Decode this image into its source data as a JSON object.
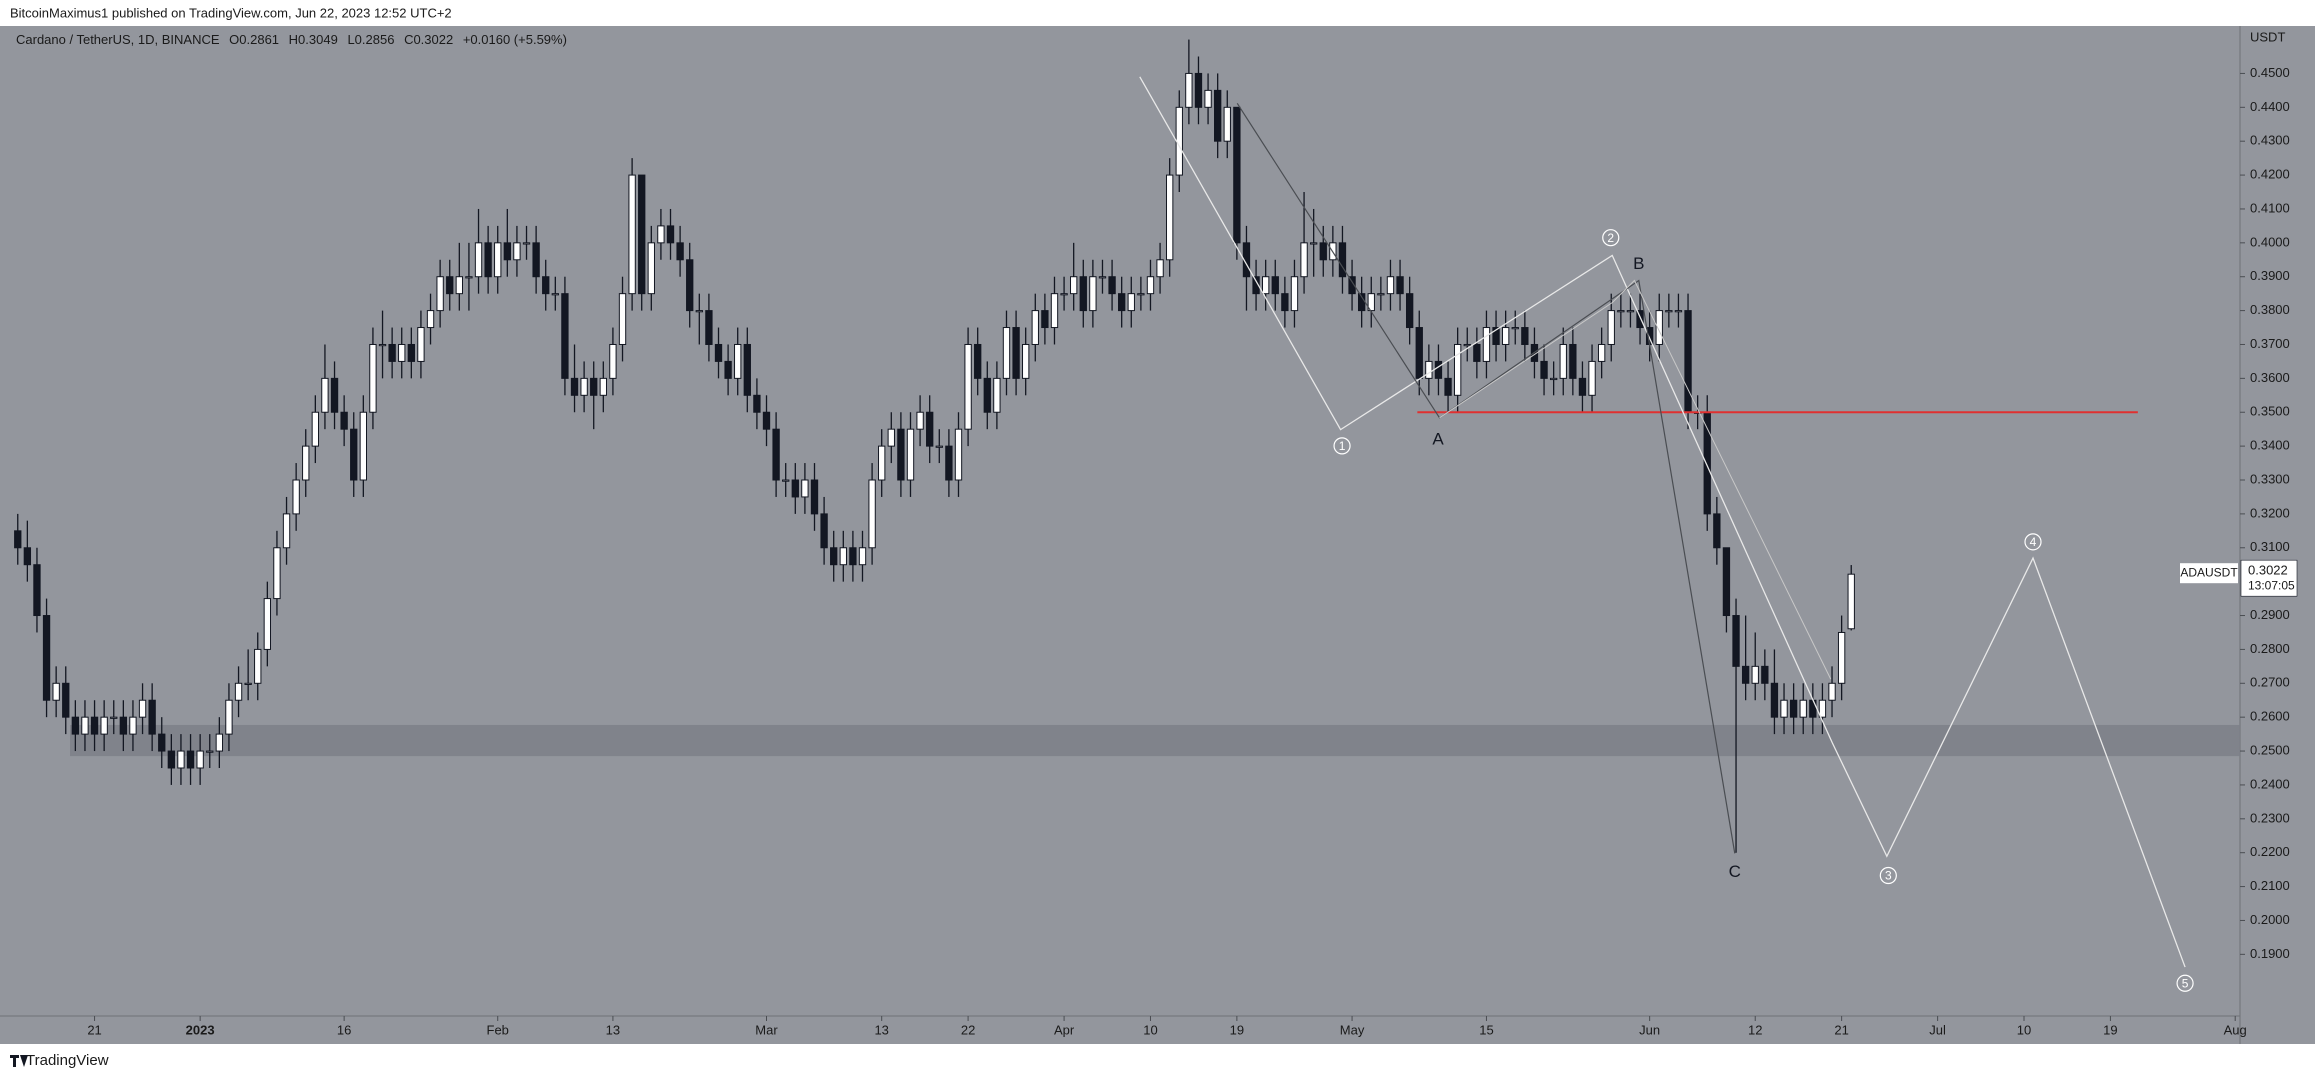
{
  "header": {
    "publisher": "BitcoinMaximus1 published on TradingView.com, Jun 22, 2023 12:52 UTC+2"
  },
  "footer": {
    "brand": "TradingView"
  },
  "chart_data": {
    "type": "candlestick",
    "title": "Cardano / TetherUS, 1D, BINANCE",
    "ohlc_labels": [
      "O",
      "H",
      "L",
      "C"
    ],
    "change": "+0.0160 (+5.59%)",
    "currency": "USDT",
    "symbol": "ADAUSDT",
    "countdown": "13:07:05",
    "up_color": "#ffffff",
    "down_color": "#131722",
    "open": [
      0.315,
      0.31,
      0.305,
      0.29,
      0.265,
      0.27,
      0.26,
      0.255,
      0.26,
      0.255,
      0.26,
      0.26,
      0.255,
      0.26,
      0.265,
      0.255,
      0.25,
      0.245,
      0.25,
      0.245,
      0.25,
      0.25,
      0.255,
      0.265,
      0.27,
      0.27,
      0.28,
      0.295,
      0.31,
      0.32,
      0.33,
      0.34,
      0.35,
      0.36,
      0.35,
      0.345,
      0.33,
      0.35,
      0.37,
      0.37,
      0.365,
      0.37,
      0.365,
      0.375,
      0.38,
      0.39,
      0.385,
      0.39,
      0.39,
      0.4,
      0.39,
      0.4,
      0.395,
      0.4,
      0.4,
      0.39,
      0.385,
      0.385,
      0.36,
      0.355,
      0.36,
      0.355,
      0.36,
      0.37,
      0.385,
      0.42,
      0.385,
      0.4,
      0.405,
      0.4,
      0.395,
      0.38,
      0.38,
      0.37,
      0.365,
      0.36,
      0.37,
      0.355,
      0.35,
      0.345,
      0.33,
      0.33,
      0.325,
      0.33,
      0.32,
      0.31,
      0.305,
      0.31,
      0.305,
      0.31,
      0.33,
      0.34,
      0.345,
      0.33,
      0.345,
      0.35,
      0.34,
      0.34,
      0.33,
      0.345,
      0.37,
      0.36,
      0.35,
      0.36,
      0.375,
      0.36,
      0.37,
      0.38,
      0.375,
      0.385,
      0.385,
      0.39,
      0.38,
      0.39,
      0.39,
      0.385,
      0.38,
      0.385,
      0.385,
      0.39,
      0.395,
      0.42,
      0.44,
      0.45,
      0.44,
      0.445,
      0.43,
      0.44,
      0.4,
      0.39,
      0.385,
      0.39,
      0.385,
      0.38,
      0.39,
      0.4,
      0.4,
      0.395,
      0.4,
      0.39,
      0.385,
      0.38,
      0.385,
      0.385,
      0.39,
      0.385,
      0.375,
      0.36,
      0.365,
      0.36,
      0.355,
      0.37,
      0.37,
      0.365,
      0.375,
      0.37,
      0.375,
      0.375,
      0.37,
      0.365,
      0.36,
      0.36,
      0.37,
      0.36,
      0.355,
      0.365,
      0.37,
      0.38,
      0.38,
      0.38,
      0.375,
      0.37,
      0.38,
      0.38,
      0.38,
      0.35,
      0.35,
      0.32,
      0.31,
      0.29,
      0.275,
      0.27,
      0.275,
      0.27,
      0.26,
      0.265,
      0.26,
      0.265,
      0.26,
      0.265,
      0.27,
      0.2861
    ],
    "high": [
      0.32,
      0.318,
      0.31,
      0.295,
      0.275,
      0.275,
      0.265,
      0.265,
      0.265,
      0.265,
      0.265,
      0.265,
      0.265,
      0.27,
      0.27,
      0.26,
      0.255,
      0.255,
      0.255,
      0.255,
      0.255,
      0.26,
      0.27,
      0.275,
      0.28,
      0.285,
      0.3,
      0.315,
      0.325,
      0.335,
      0.345,
      0.355,
      0.37,
      0.365,
      0.355,
      0.35,
      0.355,
      0.375,
      0.38,
      0.375,
      0.375,
      0.375,
      0.38,
      0.385,
      0.395,
      0.395,
      0.4,
      0.4,
      0.41,
      0.405,
      0.405,
      0.41,
      0.405,
      0.405,
      0.405,
      0.395,
      0.39,
      0.39,
      0.37,
      0.365,
      0.365,
      0.365,
      0.375,
      0.39,
      0.425,
      0.42,
      0.405,
      0.41,
      0.41,
      0.405,
      0.4,
      0.385,
      0.385,
      0.375,
      0.37,
      0.375,
      0.375,
      0.36,
      0.355,
      0.35,
      0.335,
      0.335,
      0.335,
      0.335,
      0.325,
      0.315,
      0.315,
      0.315,
      0.315,
      0.335,
      0.345,
      0.35,
      0.35,
      0.35,
      0.355,
      0.355,
      0.345,
      0.345,
      0.35,
      0.375,
      0.375,
      0.365,
      0.365,
      0.38,
      0.38,
      0.375,
      0.385,
      0.385,
      0.39,
      0.39,
      0.4,
      0.395,
      0.395,
      0.395,
      0.395,
      0.39,
      0.39,
      0.39,
      0.395,
      0.4,
      0.425,
      0.445,
      0.46,
      0.455,
      0.45,
      0.45,
      0.445,
      0.44,
      0.405,
      0.395,
      0.395,
      0.395,
      0.39,
      0.395,
      0.415,
      0.41,
      0.405,
      0.405,
      0.405,
      0.395,
      0.39,
      0.39,
      0.39,
      0.395,
      0.395,
      0.39,
      0.38,
      0.37,
      0.37,
      0.365,
      0.375,
      0.375,
      0.375,
      0.38,
      0.38,
      0.38,
      0.38,
      0.38,
      0.375,
      0.37,
      0.365,
      0.375,
      0.375,
      0.365,
      0.37,
      0.375,
      0.385,
      0.385,
      0.385,
      0.385,
      0.38,
      0.385,
      0.385,
      0.385,
      0.385,
      0.355,
      0.355,
      0.325,
      0.31,
      0.295,
      0.29,
      0.285,
      0.28,
      0.28,
      0.27,
      0.27,
      0.27,
      0.27,
      0.27,
      0.275,
      0.29,
      0.3049
    ],
    "low": [
      0.305,
      0.3,
      0.285,
      0.26,
      0.26,
      0.255,
      0.25,
      0.25,
      0.25,
      0.25,
      0.255,
      0.25,
      0.25,
      0.255,
      0.25,
      0.245,
      0.24,
      0.24,
      0.24,
      0.24,
      0.245,
      0.245,
      0.25,
      0.26,
      0.265,
      0.265,
      0.275,
      0.29,
      0.305,
      0.315,
      0.325,
      0.335,
      0.345,
      0.345,
      0.34,
      0.325,
      0.325,
      0.345,
      0.36,
      0.36,
      0.36,
      0.36,
      0.36,
      0.37,
      0.375,
      0.38,
      0.38,
      0.38,
      0.385,
      0.385,
      0.385,
      0.39,
      0.39,
      0.395,
      0.385,
      0.38,
      0.38,
      0.355,
      0.35,
      0.35,
      0.345,
      0.35,
      0.355,
      0.365,
      0.38,
      0.38,
      0.38,
      0.395,
      0.395,
      0.39,
      0.375,
      0.37,
      0.365,
      0.36,
      0.355,
      0.355,
      0.35,
      0.345,
      0.34,
      0.325,
      0.325,
      0.32,
      0.32,
      0.315,
      0.305,
      0.3,
      0.3,
      0.3,
      0.3,
      0.305,
      0.325,
      0.335,
      0.325,
      0.325,
      0.34,
      0.335,
      0.335,
      0.325,
      0.325,
      0.34,
      0.355,
      0.345,
      0.345,
      0.355,
      0.355,
      0.355,
      0.365,
      0.37,
      0.37,
      0.38,
      0.38,
      0.375,
      0.375,
      0.385,
      0.38,
      0.375,
      0.375,
      0.38,
      0.38,
      0.385,
      0.39,
      0.415,
      0.435,
      0.435,
      0.435,
      0.425,
      0.425,
      0.395,
      0.38,
      0.38,
      0.38,
      0.38,
      0.375,
      0.375,
      0.385,
      0.39,
      0.39,
      0.39,
      0.385,
      0.38,
      0.375,
      0.375,
      0.38,
      0.38,
      0.38,
      0.37,
      0.355,
      0.355,
      0.355,
      0.35,
      0.35,
      0.365,
      0.36,
      0.36,
      0.365,
      0.365,
      0.37,
      0.365,
      0.36,
      0.355,
      0.355,
      0.355,
      0.355,
      0.35,
      0.35,
      0.36,
      0.365,
      0.375,
      0.375,
      0.37,
      0.365,
      0.365,
      0.375,
      0.375,
      0.345,
      0.345,
      0.315,
      0.305,
      0.285,
      0.22,
      0.265,
      0.265,
      0.265,
      0.255,
      0.255,
      0.255,
      0.255,
      0.255,
      0.255,
      0.26,
      0.265,
      0.2856
    ],
    "close": [
      0.31,
      0.305,
      0.29,
      0.265,
      0.27,
      0.26,
      0.255,
      0.26,
      0.255,
      0.26,
      0.26,
      0.255,
      0.26,
      0.265,
      0.255,
      0.25,
      0.245,
      0.25,
      0.245,
      0.25,
      0.25,
      0.255,
      0.265,
      0.27,
      0.27,
      0.28,
      0.295,
      0.31,
      0.32,
      0.33,
      0.34,
      0.35,
      0.36,
      0.35,
      0.345,
      0.33,
      0.35,
      0.37,
      0.37,
      0.365,
      0.37,
      0.365,
      0.375,
      0.38,
      0.39,
      0.385,
      0.39,
      0.39,
      0.4,
      0.39,
      0.4,
      0.395,
      0.4,
      0.4,
      0.39,
      0.385,
      0.385,
      0.36,
      0.355,
      0.36,
      0.355,
      0.36,
      0.37,
      0.385,
      0.42,
      0.385,
      0.4,
      0.405,
      0.4,
      0.395,
      0.38,
      0.38,
      0.37,
      0.365,
      0.36,
      0.37,
      0.355,
      0.35,
      0.345,
      0.33,
      0.33,
      0.325,
      0.33,
      0.32,
      0.31,
      0.305,
      0.31,
      0.305,
      0.31,
      0.33,
      0.34,
      0.345,
      0.33,
      0.345,
      0.35,
      0.34,
      0.34,
      0.33,
      0.345,
      0.37,
      0.36,
      0.35,
      0.36,
      0.375,
      0.36,
      0.37,
      0.38,
      0.375,
      0.385,
      0.385,
      0.39,
      0.38,
      0.39,
      0.39,
      0.385,
      0.38,
      0.385,
      0.385,
      0.39,
      0.395,
      0.42,
      0.44,
      0.45,
      0.44,
      0.445,
      0.43,
      0.44,
      0.4,
      0.39,
      0.385,
      0.39,
      0.385,
      0.38,
      0.39,
      0.4,
      0.4,
      0.395,
      0.4,
      0.39,
      0.385,
      0.38,
      0.385,
      0.385,
      0.39,
      0.385,
      0.375,
      0.36,
      0.365,
      0.36,
      0.355,
      0.37,
      0.37,
      0.365,
      0.375,
      0.37,
      0.375,
      0.375,
      0.37,
      0.365,
      0.36,
      0.36,
      0.37,
      0.36,
      0.355,
      0.365,
      0.37,
      0.38,
      0.38,
      0.38,
      0.375,
      0.37,
      0.38,
      0.38,
      0.38,
      0.35,
      0.35,
      0.32,
      0.31,
      0.29,
      0.275,
      0.27,
      0.275,
      0.27,
      0.26,
      0.265,
      0.26,
      0.265,
      0.26,
      0.265,
      0.27,
      0.285,
      0.3022
    ],
    "xlim": [
      -1.85,
      231.5
    ],
    "xticks": [
      {
        "value": 8,
        "label": "21"
      },
      {
        "value": 19,
        "label": "2023"
      },
      {
        "value": 34,
        "label": "16"
      },
      {
        "value": 50,
        "label": "Feb"
      },
      {
        "value": 62,
        "label": "13"
      },
      {
        "value": 78,
        "label": "Mar"
      },
      {
        "value": 90,
        "label": "13"
      },
      {
        "value": 99,
        "label": "22"
      },
      {
        "value": 109,
        "label": "Apr"
      },
      {
        "value": 118,
        "label": "10"
      },
      {
        "value": 127,
        "label": "19"
      },
      {
        "value": 139,
        "label": "May"
      },
      {
        "value": 153,
        "label": "15"
      },
      {
        "value": 170,
        "label": "Jun"
      },
      {
        "value": 181,
        "label": "12"
      },
      {
        "value": 190,
        "label": "21"
      },
      {
        "value": 200,
        "label": "Jul"
      },
      {
        "value": 209,
        "label": "10"
      },
      {
        "value": 218,
        "label": "19"
      },
      {
        "value": 231,
        "label": "Aug"
      }
    ],
    "ylim": [
      0.1718,
      0.464
    ],
    "yticks": [
      {
        "value": 0.45,
        "label": "0.4500"
      },
      {
        "value": 0.44,
        "label": "0.4400"
      },
      {
        "value": 0.43,
        "label": "0.4300"
      },
      {
        "value": 0.42,
        "label": "0.4200"
      },
      {
        "value": 0.41,
        "label": "0.4100"
      },
      {
        "value": 0.4,
        "label": "0.4000"
      },
      {
        "value": 0.39,
        "label": "0.3900"
      },
      {
        "value": 0.38,
        "label": "0.3800"
      },
      {
        "value": 0.37,
        "label": "0.3700"
      },
      {
        "value": 0.36,
        "label": "0.3600"
      },
      {
        "value": 0.35,
        "label": "0.3500"
      },
      {
        "value": 0.34,
        "label": "0.3400"
      },
      {
        "value": 0.33,
        "label": "0.3300"
      },
      {
        "value": 0.32,
        "label": "0.3200"
      },
      {
        "value": 0.31,
        "label": "0.3100"
      },
      {
        "value": 0.29,
        "label": "0.2900"
      },
      {
        "value": 0.28,
        "label": "0.2800"
      },
      {
        "value": 0.27,
        "label": "0.2700"
      },
      {
        "value": 0.26,
        "label": "0.2600"
      },
      {
        "value": 0.25,
        "label": "0.2500"
      },
      {
        "value": 0.24,
        "label": "0.2400"
      },
      {
        "value": 0.23,
        "label": "0.2300"
      },
      {
        "value": 0.22,
        "label": "0.2200"
      },
      {
        "value": 0.21,
        "label": "0.2100"
      },
      {
        "value": 0.2,
        "label": "0.2000"
      },
      {
        "value": 0.19,
        "label": "0.1900"
      }
    ],
    "zone": [
      0.2485,
      0.2577
    ],
    "zone_color": "#7d8088",
    "support": 0.35,
    "support_color": "#e03030",
    "waves": [
      "1",
      "2",
      "3",
      "4",
      "5"
    ],
    "abc": [
      "A",
      "B",
      "C"
    ]
  }
}
